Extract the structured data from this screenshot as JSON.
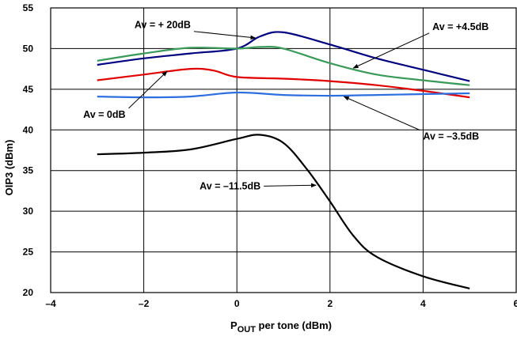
{
  "chart_data": {
    "type": "line",
    "xlabel_main": "P",
    "xlabel_sub": "OUT",
    "xlabel_rest": " per tone (dBm)",
    "ylabel": "OIP3 (dBm)",
    "xlim": [
      -4,
      6
    ],
    "ylim": [
      20,
      55
    ],
    "x_ticks": [
      -4,
      -2,
      0,
      2,
      4,
      6
    ],
    "x_tick_labels": [
      "–4",
      "–2",
      "0",
      "2",
      "4",
      "6"
    ],
    "y_ticks": [
      20,
      25,
      30,
      35,
      40,
      45,
      50,
      55
    ],
    "y_tick_labels": [
      "20",
      "25",
      "30",
      "35",
      "40",
      "45",
      "50",
      "55"
    ],
    "grid": true,
    "series": [
      {
        "name": "Av = + 20dB",
        "color": "#000080",
        "points": [
          [
            -3,
            48
          ],
          [
            -2,
            48.8
          ],
          [
            -1,
            49.4
          ],
          [
            0,
            50
          ],
          [
            0.5,
            51.5
          ],
          [
            1,
            52
          ],
          [
            2,
            50.5
          ],
          [
            3,
            48.8
          ],
          [
            4,
            47.4
          ],
          [
            5,
            46
          ]
        ]
      },
      {
        "name": "Av = +4.5dB",
        "color": "#3a9a5a",
        "points": [
          [
            -3,
            48.5
          ],
          [
            -2,
            49.4
          ],
          [
            -1,
            50.1
          ],
          [
            0,
            50
          ],
          [
            0.5,
            50.2
          ],
          [
            1,
            50
          ],
          [
            2,
            48.2
          ],
          [
            3,
            46.8
          ],
          [
            4,
            46.1
          ],
          [
            5,
            45.5
          ]
        ]
      },
      {
        "name": "Av = 0dB",
        "color": "#e00000",
        "points": [
          [
            -3,
            46.1
          ],
          [
            -2,
            46.8
          ],
          [
            -1,
            47.5
          ],
          [
            -0.5,
            47.3
          ],
          [
            0,
            46.5
          ],
          [
            1,
            46.3
          ],
          [
            2,
            46
          ],
          [
            3,
            45.5
          ],
          [
            4,
            44.8
          ],
          [
            5,
            44
          ]
        ]
      },
      {
        "name": "Av = –3.5dB",
        "color": "#2e6fe0",
        "points": [
          [
            -3,
            44.1
          ],
          [
            -2,
            44
          ],
          [
            -1,
            44.1
          ],
          [
            0,
            44.6
          ],
          [
            1,
            44.3
          ],
          [
            2,
            44.2
          ],
          [
            3,
            44.3
          ],
          [
            4,
            44.4
          ],
          [
            5,
            44.5
          ]
        ]
      },
      {
        "name": "Av = –11.5dB",
        "color": "#000000",
        "points": [
          [
            -3,
            37
          ],
          [
            -2,
            37.2
          ],
          [
            -1,
            37.6
          ],
          [
            0,
            38.9
          ],
          [
            0.5,
            39.4
          ],
          [
            1,
            38.4
          ],
          [
            1.5,
            35.2
          ],
          [
            2,
            31.2
          ],
          [
            2.5,
            27
          ],
          [
            3,
            24.4
          ],
          [
            4,
            22
          ],
          [
            5,
            20.5
          ]
        ]
      }
    ],
    "annotations": [
      {
        "text": "Av = + 20dB",
        "x": -2.2,
        "y": 52.5,
        "arrow_to": [
          0.4,
          51.3
        ]
      },
      {
        "text": "Av = +4.5dB",
        "x": 4.2,
        "y": 52.3,
        "arrow_to": [
          2.5,
          47.6
        ]
      },
      {
        "text": "Av = 0dB",
        "x": -3.3,
        "y": 41.5,
        "arrow_to": [
          -1.5,
          47.2
        ]
      },
      {
        "text": "Av = –3.5dB",
        "x": 4.0,
        "y": 38.8,
        "arrow_to": [
          2.3,
          44.1
        ]
      },
      {
        "text": "Av = –11.5dB",
        "x": -0.8,
        "y": 32.7,
        "arrow_to": [
          1.7,
          33.2
        ]
      }
    ]
  }
}
